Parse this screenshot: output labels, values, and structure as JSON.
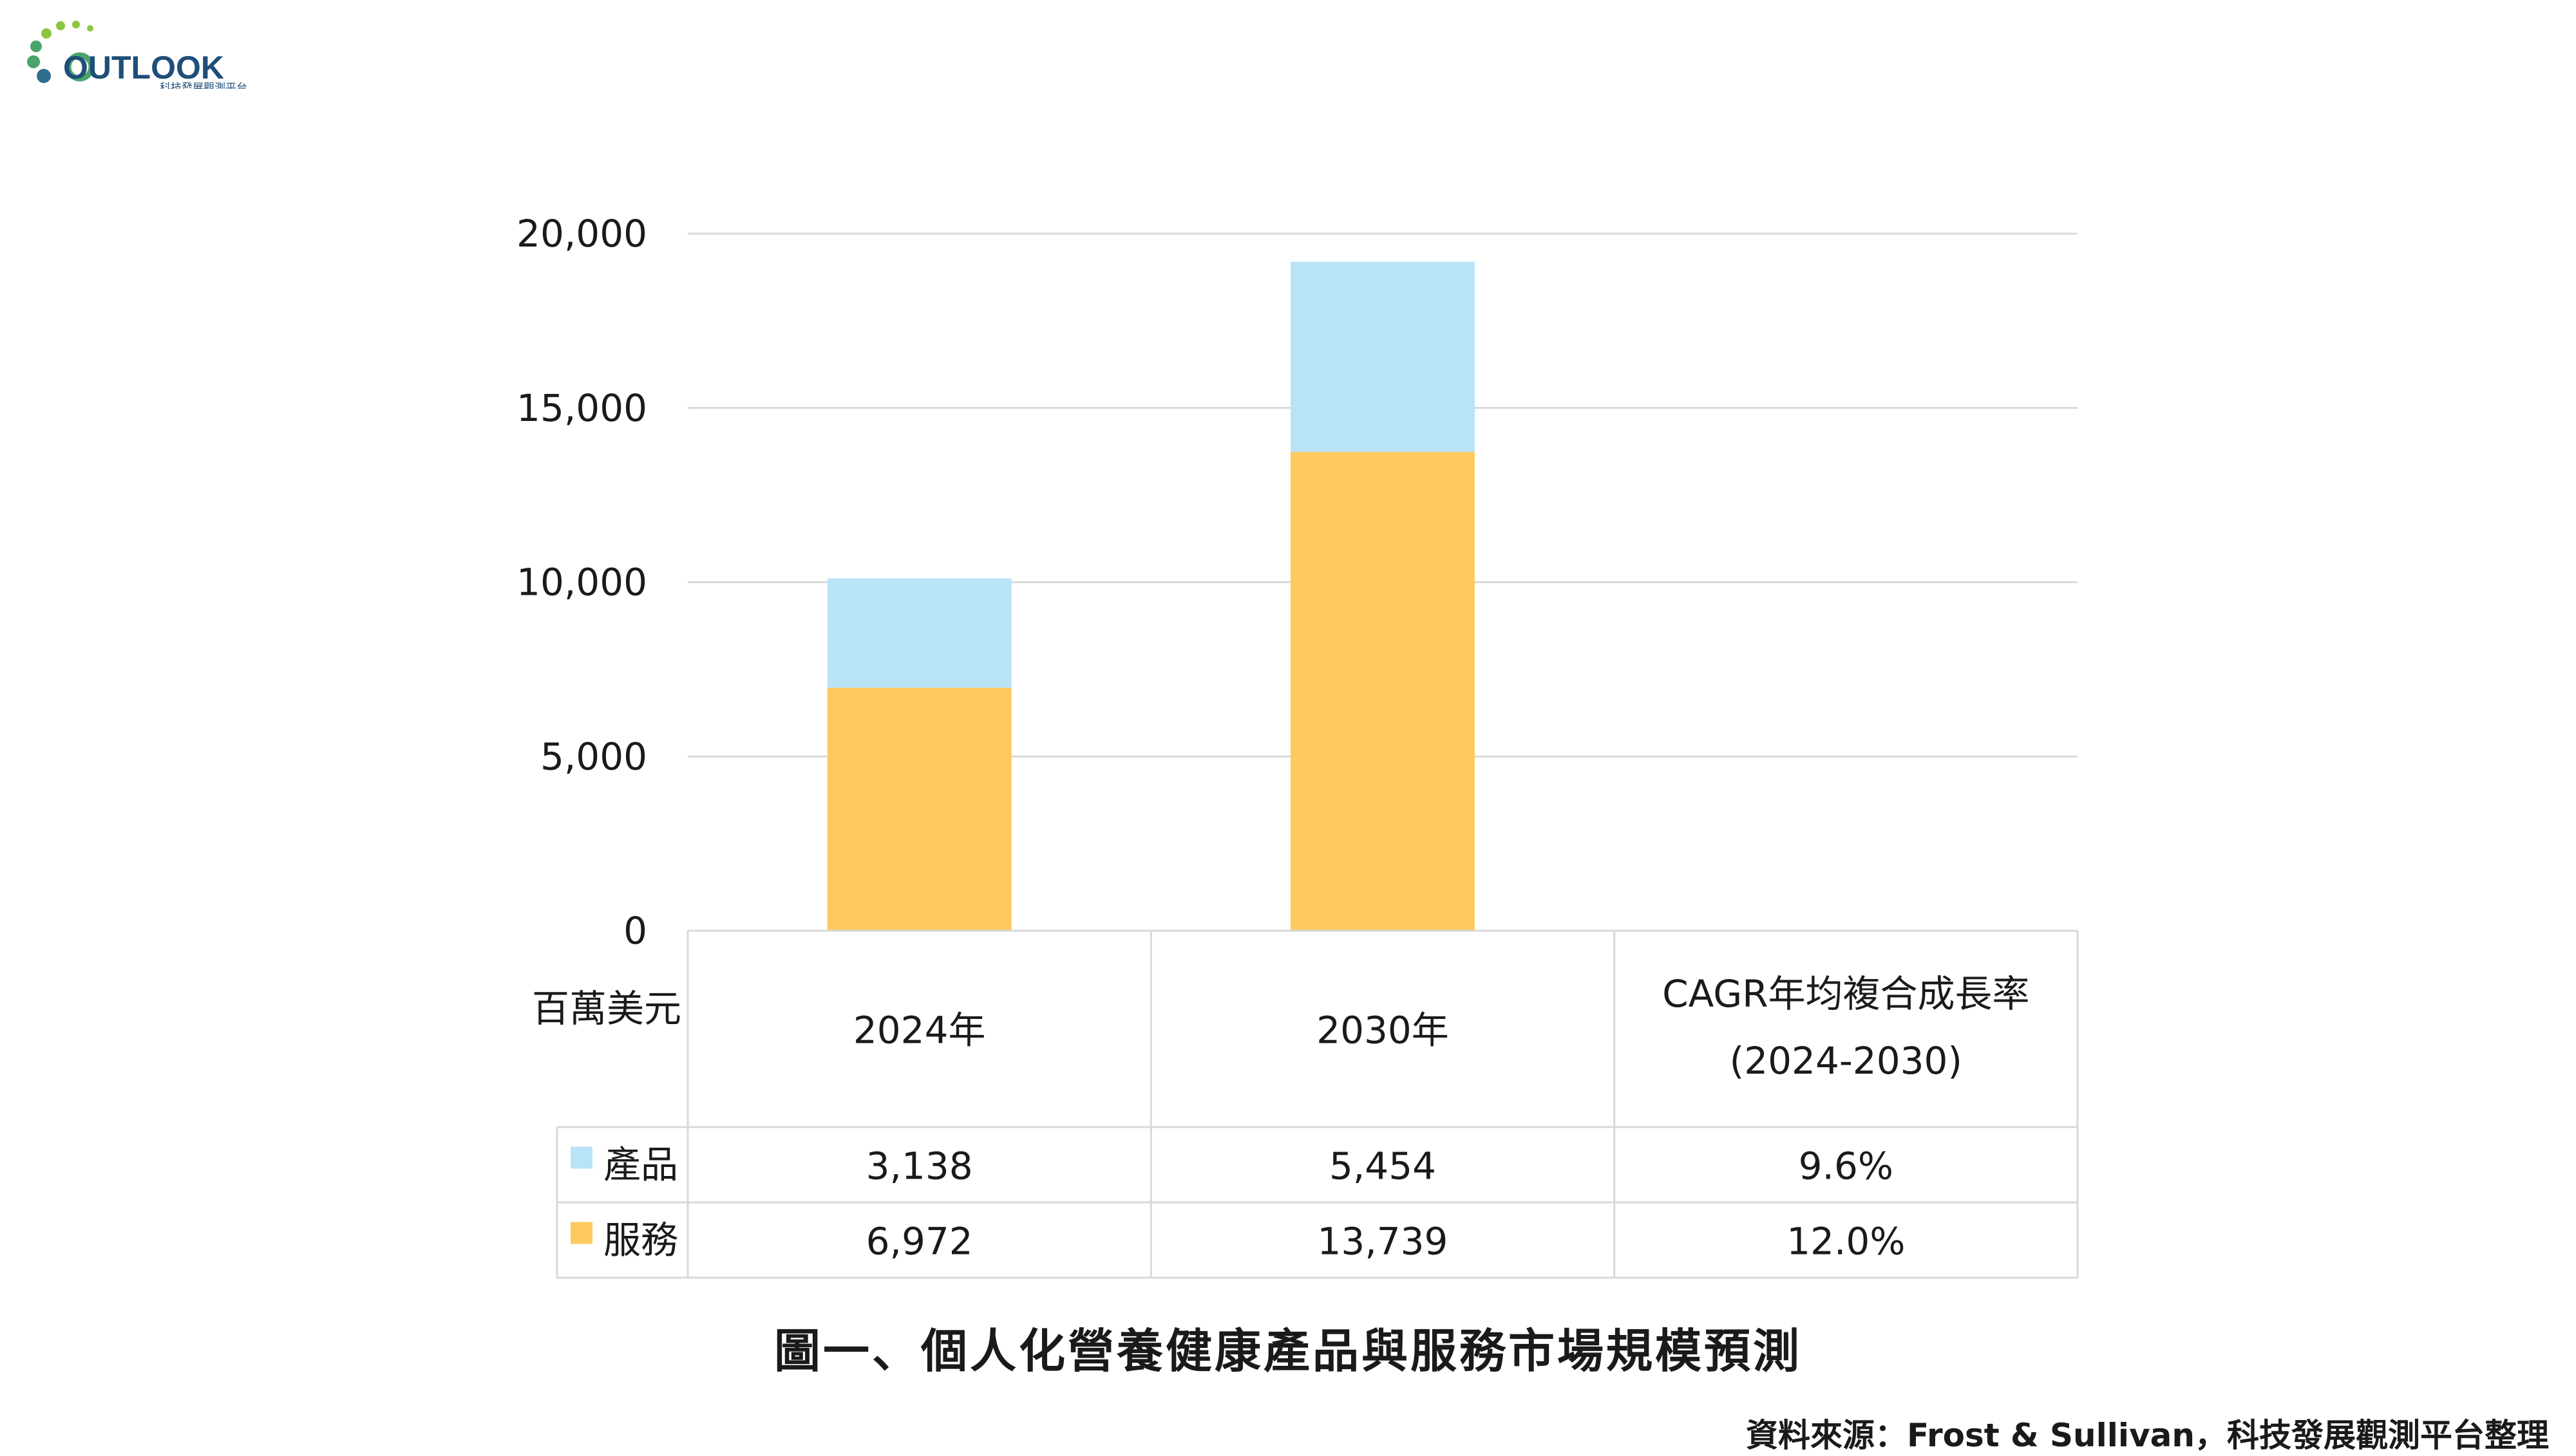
{
  "logo": {
    "name": "OUTLOOK",
    "subtitle": "科技發展觀測平台",
    "colors": {
      "text": "#1f4e79",
      "dot_light": "#8cc63f",
      "dot_mid": "#4aa46b",
      "dot_dark": "#2e6e8e"
    }
  },
  "chart_data": {
    "type": "bar",
    "stacked": true,
    "unit_label": "百萬美元",
    "categories": [
      "2024年",
      "2030年"
    ],
    "series": [
      {
        "name": "服務",
        "values": [
          6972,
          13739
        ],
        "labels": [
          "6,972",
          "13,739"
        ],
        "cagr": "12.0%",
        "color": "#fec95f"
      },
      {
        "name": "產品",
        "values": [
          3138,
          5454
        ],
        "labels": [
          "3,138",
          "5,454"
        ],
        "cagr": "9.6%",
        "color": "#b9e3f7"
      }
    ],
    "cagr_header": [
      "CAGR年均複合成長率",
      "(2024-2030)"
    ],
    "ylim": [
      0,
      20000
    ],
    "yticks": [
      0,
      5000,
      10000,
      15000,
      20000
    ],
    "ytick_labels": [
      "0",
      "5,000",
      "10,000",
      "15,000",
      "20,000"
    ],
    "grid": true,
    "legend": "data-table"
  },
  "caption": "圖一、個人化營養健康產品與服務市場規模預測",
  "source": "資料來源：Frost & Sullivan，科技發展觀測平台整理"
}
